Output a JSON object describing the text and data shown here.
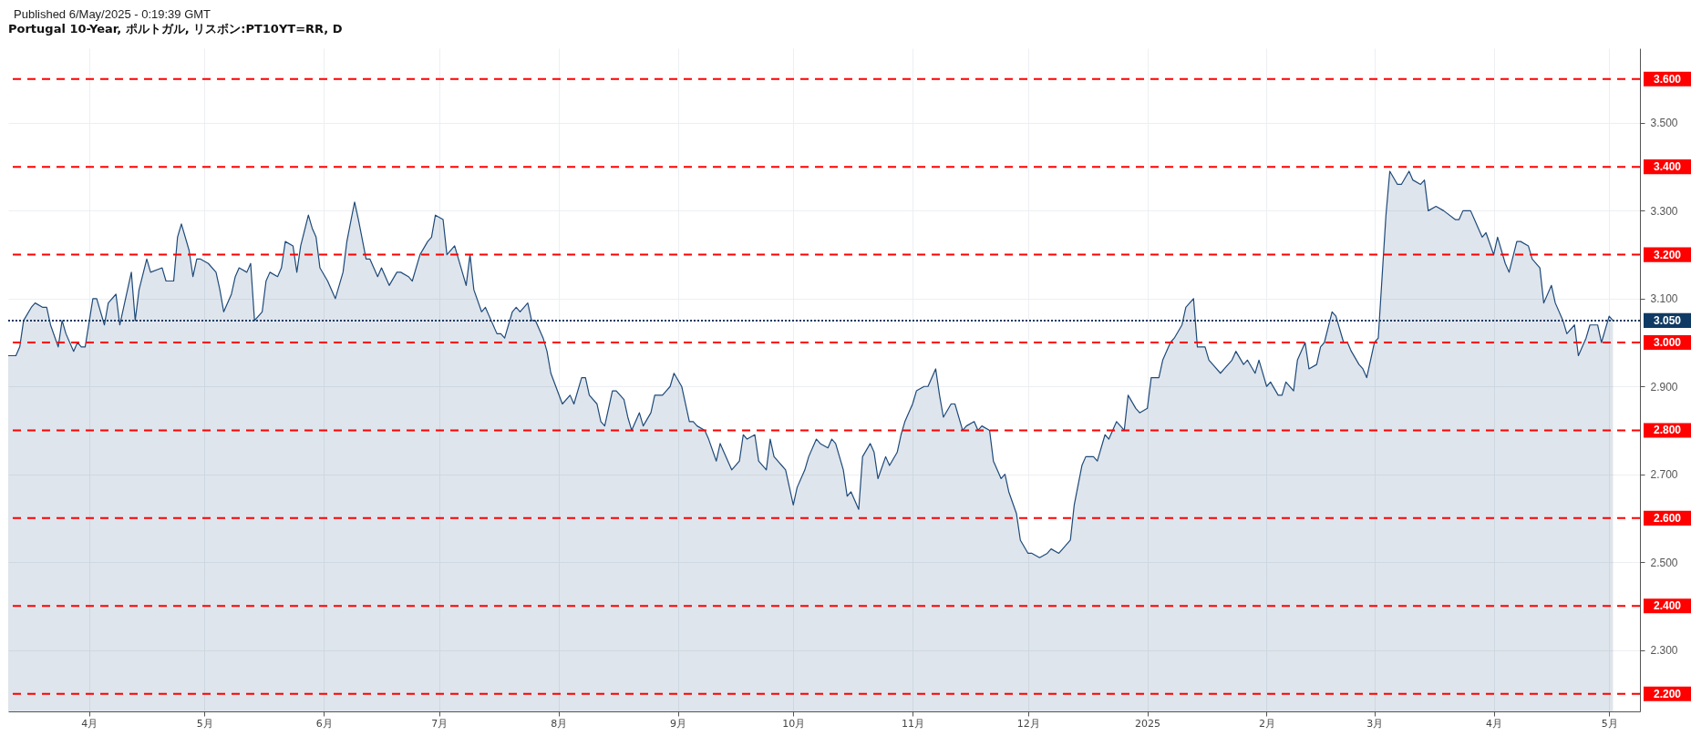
{
  "chart_data": {
    "type": "area",
    "title": "Portugal 10-Year, ポルトガル, リスボン:PT10YT=RR, D",
    "annotations": [
      "Published 6/May/2025 - 0:19:39 GMT"
    ],
    "x": [
      "2024-03-11",
      "2024-03-13",
      "2024-03-14",
      "2024-03-15",
      "2024-03-17",
      "2024-03-18",
      "2024-03-20",
      "2024-03-21",
      "2024-03-22",
      "2024-03-24",
      "2024-03-25",
      "2024-03-26",
      "2024-03-28",
      "2024-03-29",
      "2024-03-30",
      "2024-03-31",
      "2024-04-02",
      "2024-04-03",
      "2024-04-05",
      "2024-04-06",
      "2024-04-08",
      "2024-04-09",
      "2024-04-12",
      "2024-04-13",
      "2024-04-14",
      "2024-04-16",
      "2024-04-17",
      "2024-04-20",
      "2024-04-21",
      "2024-04-23",
      "2024-04-24",
      "2024-04-25",
      "2024-04-27",
      "2024-04-28",
      "2024-04-29",
      "2024-04-30",
      "2024-05-02",
      "2024-05-04",
      "2024-05-05",
      "2024-05-06",
      "2024-05-08",
      "2024-05-09",
      "2024-05-10",
      "2024-05-12",
      "2024-05-13",
      "2024-05-14",
      "2024-05-16",
      "2024-05-17",
      "2024-05-18",
      "2024-05-20",
      "2024-05-21",
      "2024-05-22",
      "2024-05-24",
      "2024-05-25",
      "2024-05-26",
      "2024-05-28",
      "2024-05-29",
      "2024-05-30",
      "2024-05-31",
      "2024-06-02",
      "2024-06-04",
      "2024-06-06",
      "2024-06-07",
      "2024-06-09",
      "2024-06-10",
      "2024-06-12",
      "2024-06-13",
      "2024-06-15",
      "2024-06-16",
      "2024-06-18",
      "2024-06-20",
      "2024-06-21",
      "2024-06-23",
      "2024-06-24",
      "2024-06-26",
      "2024-06-28",
      "2024-06-29",
      "2024-06-30",
      "2024-07-02",
      "2024-07-03",
      "2024-07-05",
      "2024-07-08",
      "2024-07-09",
      "2024-07-10",
      "2024-07-12",
      "2024-07-13",
      "2024-07-16",
      "2024-07-17",
      "2024-07-18",
      "2024-07-20",
      "2024-07-21",
      "2024-07-22",
      "2024-07-24",
      "2024-07-25",
      "2024-07-26",
      "2024-07-28",
      "2024-07-29",
      "2024-07-30",
      "2024-08-02",
      "2024-08-04",
      "2024-08-05",
      "2024-08-07",
      "2024-08-08",
      "2024-08-09",
      "2024-08-11",
      "2024-08-12",
      "2024-08-13",
      "2024-08-15",
      "2024-08-16",
      "2024-08-18",
      "2024-08-19",
      "2024-08-20",
      "2024-08-22",
      "2024-08-23",
      "2024-08-25",
      "2024-08-26",
      "2024-08-28",
      "2024-08-29",
      "2024-08-30",
      "2024-08-31",
      "2024-09-02",
      "2024-09-04",
      "2024-09-05",
      "2024-09-06",
      "2024-09-08",
      "2024-09-09",
      "2024-09-11",
      "2024-09-12",
      "2024-09-15",
      "2024-09-17",
      "2024-09-18",
      "2024-09-19",
      "2024-09-21",
      "2024-09-22",
      "2024-09-24",
      "2024-09-25",
      "2024-09-26",
      "2024-09-28",
      "2024-09-29",
      "2024-10-01",
      "2024-10-02",
      "2024-10-04",
      "2024-10-05",
      "2024-10-07",
      "2024-10-08",
      "2024-10-10",
      "2024-10-11",
      "2024-10-12",
      "2024-10-14",
      "2024-10-15",
      "2024-10-16",
      "2024-10-18",
      "2024-10-19",
      "2024-10-21",
      "2024-10-22",
      "2024-10-23",
      "2024-10-25",
      "2024-10-26",
      "2024-10-28",
      "2024-10-29",
      "2024-10-30",
      "2024-11-01",
      "2024-11-02",
      "2024-11-04",
      "2024-11-05",
      "2024-11-07",
      "2024-11-08",
      "2024-11-09",
      "2024-11-11",
      "2024-11-12",
      "2024-11-14",
      "2024-11-15",
      "2024-11-17",
      "2024-11-18",
      "2024-11-19",
      "2024-11-21",
      "2024-11-22",
      "2024-11-24",
      "2024-11-25",
      "2024-11-26",
      "2024-11-28",
      "2024-11-29",
      "2024-12-01",
      "2024-12-02",
      "2024-12-04",
      "2024-12-06",
      "2024-12-07",
      "2024-12-09",
      "2024-12-10",
      "2024-12-12",
      "2024-12-13",
      "2024-12-15",
      "2024-12-16",
      "2024-12-18",
      "2024-12-19",
      "2024-12-21",
      "2024-12-22",
      "2024-12-24",
      "2024-12-26",
      "2024-12-27",
      "2024-12-29",
      "2024-12-30",
      "2025-01-01",
      "2025-01-02",
      "2025-01-04",
      "2025-01-05",
      "2025-01-07",
      "2025-01-08",
      "2025-01-10",
      "2025-01-11",
      "2025-01-13",
      "2025-01-14",
      "2025-01-16",
      "2025-01-17",
      "2025-01-18",
      "2025-01-20",
      "2025-01-21",
      "2025-01-23",
      "2025-01-24",
      "2025-01-26",
      "2025-01-27",
      "2025-01-29",
      "2025-01-30",
      "2025-02-01",
      "2025-02-02",
      "2025-02-04",
      "2025-02-05",
      "2025-02-06",
      "2025-02-08",
      "2025-02-09",
      "2025-02-11",
      "2025-02-12",
      "2025-02-14",
      "2025-02-15",
      "2025-02-16",
      "2025-02-18",
      "2025-02-19",
      "2025-02-21",
      "2025-02-22",
      "2025-02-23",
      "2025-02-25",
      "2025-02-26",
      "2025-02-27",
      "2025-03-01",
      "2025-03-02",
      "2025-03-04",
      "2025-03-05",
      "2025-03-07",
      "2025-03-08",
      "2025-03-10",
      "2025-03-11",
      "2025-03-13",
      "2025-03-14",
      "2025-03-15",
      "2025-03-17",
      "2025-03-19",
      "2025-03-22",
      "2025-03-23",
      "2025-03-24",
      "2025-03-26",
      "2025-03-27",
      "2025-03-29",
      "2025-03-30",
      "2025-04-01",
      "2025-04-02",
      "2025-04-04",
      "2025-04-05",
      "2025-04-07",
      "2025-04-08",
      "2025-04-10",
      "2025-04-11",
      "2025-04-13",
      "2025-04-14",
      "2025-04-16",
      "2025-04-17",
      "2025-04-19",
      "2025-04-20",
      "2025-04-22",
      "2025-04-23",
      "2025-04-25",
      "2025-04-26",
      "2025-04-28",
      "2025-04-29",
      "2025-05-01",
      "2025-05-02"
    ],
    "series": [
      {
        "color": "#1e4a7a",
        "values": [
          2.97,
          2.97,
          2.99,
          3.05,
          3.08,
          3.09,
          3.08,
          3.08,
          3.04,
          2.99,
          3.05,
          3.02,
          2.98,
          3.0,
          2.99,
          2.99,
          3.1,
          3.1,
          3.04,
          3.09,
          3.11,
          3.04,
          3.16,
          3.05,
          3.12,
          3.19,
          3.16,
          3.17,
          3.14,
          3.14,
          3.24,
          3.27,
          3.21,
          3.15,
          3.19,
          3.19,
          3.18,
          3.16,
          3.12,
          3.07,
          3.11,
          3.15,
          3.17,
          3.16,
          3.18,
          3.05,
          3.07,
          3.14,
          3.16,
          3.15,
          3.17,
          3.23,
          3.22,
          3.16,
          3.22,
          3.29,
          3.26,
          3.24,
          3.17,
          3.14,
          3.1,
          3.16,
          3.23,
          3.32,
          3.28,
          3.19,
          3.19,
          3.15,
          3.17,
          3.13,
          3.16,
          3.16,
          3.15,
          3.14,
          3.2,
          3.23,
          3.24,
          3.29,
          3.28,
          3.2,
          3.22,
          3.13,
          3.2,
          3.12,
          3.07,
          3.08,
          3.02,
          3.02,
          3.01,
          3.07,
          3.08,
          3.07,
          3.09,
          3.05,
          3.05,
          3.01,
          2.98,
          2.93,
          2.86,
          2.88,
          2.86,
          2.92,
          2.92,
          2.88,
          2.86,
          2.82,
          2.81,
          2.89,
          2.89,
          2.87,
          2.83,
          2.8,
          2.84,
          2.81,
          2.84,
          2.88,
          2.88,
          2.89,
          2.9,
          2.93,
          2.9,
          2.82,
          2.82,
          2.81,
          2.8,
          2.78,
          2.73,
          2.77,
          2.71,
          2.73,
          2.79,
          2.78,
          2.79,
          2.73,
          2.71,
          2.78,
          2.74,
          2.72,
          2.71,
          2.63,
          2.67,
          2.71,
          2.74,
          2.78,
          2.77,
          2.76,
          2.78,
          2.77,
          2.71,
          2.65,
          2.66,
          2.62,
          2.74,
          2.77,
          2.75,
          2.69,
          2.74,
          2.72,
          2.75,
          2.79,
          2.82,
          2.86,
          2.89,
          2.9,
          2.9,
          2.94,
          2.88,
          2.83,
          2.86,
          2.86,
          2.8,
          2.81,
          2.82,
          2.8,
          2.81,
          2.8,
          2.73,
          2.69,
          2.7,
          2.66,
          2.61,
          2.55,
          2.52,
          2.52,
          2.51,
          2.52,
          2.53,
          2.52,
          2.53,
          2.55,
          2.63,
          2.72,
          2.74,
          2.74,
          2.73,
          2.79,
          2.78,
          2.82,
          2.8,
          2.88,
          2.85,
          2.84,
          2.85,
          2.92,
          2.92,
          2.96,
          3.0,
          3.01,
          3.04,
          3.08,
          3.1,
          2.99,
          2.99,
          2.96,
          2.95,
          2.93,
          2.94,
          2.96,
          2.98,
          2.95,
          2.96,
          2.93,
          2.96,
          2.9,
          2.91,
          2.88,
          2.88,
          2.91,
          2.89,
          2.96,
          3.0,
          2.94,
          2.95,
          2.99,
          3.0,
          3.07,
          3.06,
          3.0,
          3.0,
          2.98,
          2.95,
          2.94,
          2.92,
          3.0,
          3.01,
          3.29,
          3.39,
          3.36,
          3.36,
          3.39,
          3.37,
          3.36,
          3.37,
          3.3,
          3.31,
          3.3,
          3.28,
          3.28,
          3.3,
          3.3,
          3.28,
          3.24,
          3.25,
          3.2,
          3.24,
          3.18,
          3.16,
          3.23,
          3.23,
          3.22,
          3.19,
          3.17,
          3.09,
          3.13,
          3.09,
          3.05,
          3.02,
          3.04,
          2.97,
          3.01,
          3.04,
          3.04,
          3.0,
          3.06,
          3.05
        ]
      }
    ],
    "xlim": [
      "2024-03-11",
      "2025-05-09"
    ],
    "xticks": [
      {
        "value": "2024-04-01",
        "label": "4月"
      },
      {
        "value": "2024-05-01",
        "label": "5月"
      },
      {
        "value": "2024-06-01",
        "label": "6月"
      },
      {
        "value": "2024-07-01",
        "label": "7月"
      },
      {
        "value": "2024-08-01",
        "label": "8月"
      },
      {
        "value": "2024-09-01",
        "label": "9月"
      },
      {
        "value": "2024-10-01",
        "label": "10月"
      },
      {
        "value": "2024-11-01",
        "label": "11月"
      },
      {
        "value": "2024-12-01",
        "label": "12月"
      },
      {
        "value": "2025-01-01",
        "label": "2025"
      },
      {
        "value": "2025-02-01",
        "label": "2月"
      },
      {
        "value": "2025-03-01",
        "label": "3月"
      },
      {
        "value": "2025-04-01",
        "label": "4月"
      },
      {
        "value": "2025-05-01",
        "label": "5月"
      }
    ],
    "ylim": [
      2.16,
      3.67
    ],
    "yticks": [
      {
        "value": 2.3,
        "label": "2.300"
      },
      {
        "value": 2.5,
        "label": "2.500"
      },
      {
        "value": 2.7,
        "label": "2.700"
      },
      {
        "value": 2.9,
        "label": "2.900"
      },
      {
        "value": 3.1,
        "label": "3.100"
      },
      {
        "value": 3.3,
        "label": "3.300"
      },
      {
        "value": 3.5,
        "label": "3.500"
      }
    ],
    "grid": true,
    "ref_lines": [
      {
        "axis": "y",
        "value": 2.2,
        "label": "2.200",
        "color": "#ff0000",
        "line_style": "dashed"
      },
      {
        "axis": "y",
        "value": 2.4,
        "label": "2.400",
        "color": "#ff0000",
        "line_style": "dashed"
      },
      {
        "axis": "y",
        "value": 2.6,
        "label": "2.600",
        "color": "#ff0000",
        "line_style": "dashed"
      },
      {
        "axis": "y",
        "value": 2.8,
        "label": "2.800",
        "color": "#ff0000",
        "line_style": "dashed"
      },
      {
        "axis": "y",
        "value": 3.0,
        "label": "3.000",
        "color": "#ff0000",
        "line_style": "dashed"
      },
      {
        "axis": "y",
        "value": 3.2,
        "label": "3.200",
        "color": "#ff0000",
        "line_style": "dashed"
      },
      {
        "axis": "y",
        "value": 3.4,
        "label": "3.400",
        "color": "#ff0000",
        "line_style": "dashed"
      },
      {
        "axis": "y",
        "value": 3.6,
        "label": "3.600",
        "color": "#ff0000",
        "line_style": "dashed"
      },
      {
        "axis": "y",
        "value": 3.05,
        "label": "3.050",
        "color": "#0f3a63",
        "line_style": "dotted"
      }
    ]
  }
}
